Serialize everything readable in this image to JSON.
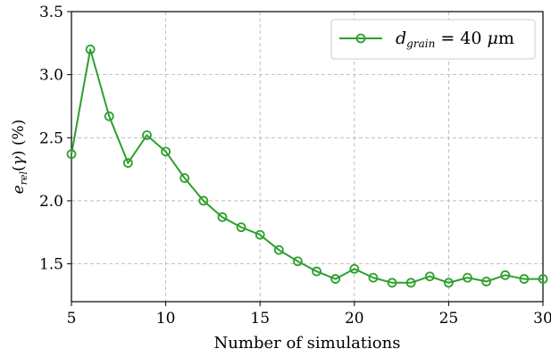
{
  "chart_data": {
    "type": "line",
    "xlabel": "Number of simulations",
    "ylabel": "e_rel(γ) (%)",
    "xlim": [
      5,
      30
    ],
    "ylim": [
      1.2,
      3.5
    ],
    "x_ticks": [
      5,
      10,
      15,
      20,
      25,
      30
    ],
    "y_ticks": [
      1.5,
      2.0,
      2.5,
      3.0,
      3.5
    ],
    "x_tick_labels": [
      "5",
      "10",
      "15",
      "20",
      "25",
      "30"
    ],
    "y_tick_labels": [
      "1.5",
      "2.0",
      "2.5",
      "3.0",
      "3.5"
    ],
    "grid": true,
    "legend_position": "top-right",
    "series": [
      {
        "name": "d_grain = 40 μm",
        "color": "#2ca02c",
        "marker": "open-circle",
        "x": [
          5,
          6,
          7,
          8,
          9,
          10,
          11,
          12,
          13,
          14,
          15,
          16,
          17,
          18,
          19,
          20,
          21,
          22,
          23,
          24,
          25,
          26,
          27,
          28,
          29,
          30
        ],
        "y": [
          2.37,
          3.2,
          2.67,
          2.3,
          2.52,
          2.39,
          2.18,
          2.0,
          1.87,
          1.79,
          1.73,
          1.61,
          1.52,
          1.44,
          1.38,
          1.46,
          1.39,
          1.35,
          1.35,
          1.4,
          1.35,
          1.39,
          1.36,
          1.41,
          1.38,
          1.38
        ]
      }
    ]
  }
}
